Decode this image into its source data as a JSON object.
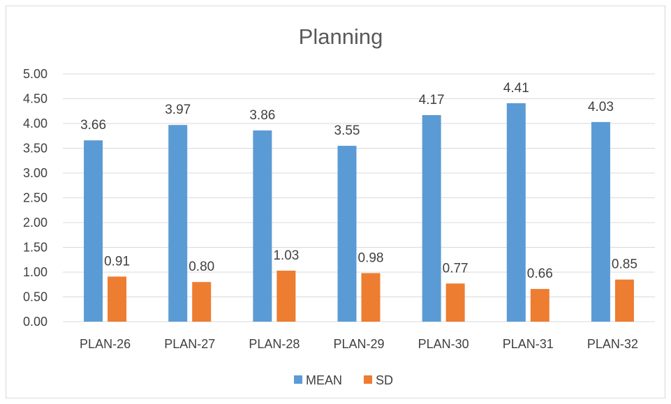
{
  "chart_data": {
    "type": "bar",
    "title": "Planning",
    "xlabel": "",
    "ylabel": "",
    "categories": [
      "PLAN-26",
      "PLAN-27",
      "PLAN-28",
      "PLAN-29",
      "PLAN-30",
      "PLAN-31",
      "PLAN-32"
    ],
    "series": [
      {
        "name": "MEAN",
        "color": "#5b9bd5",
        "values": [
          3.66,
          3.97,
          3.86,
          3.55,
          4.17,
          4.41,
          4.03
        ]
      },
      {
        "name": "SD",
        "color": "#ed7d31",
        "values": [
          0.91,
          0.8,
          1.03,
          0.98,
          0.77,
          0.66,
          0.85
        ]
      }
    ],
    "ylim": [
      0,
      5
    ],
    "yticks": [
      "0.00",
      "0.50",
      "1.00",
      "1.50",
      "2.00",
      "2.50",
      "3.00",
      "3.50",
      "4.00",
      "4.50",
      "5.00"
    ],
    "data_labels": true,
    "grid": true,
    "legend_position": "bottom"
  }
}
